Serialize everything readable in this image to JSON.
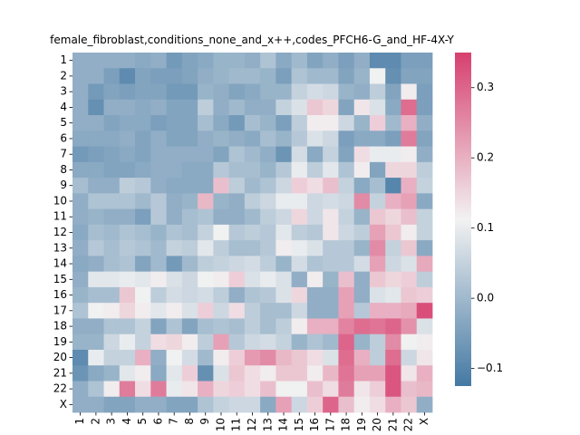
{
  "chart_data": {
    "type": "heatmap",
    "title": "female_fibroblast,conditions_none_and_x++,codes_PFCH6-G_and_HF-4X-Y",
    "xlabel": "",
    "ylabel": "",
    "x_labels": [
      "1",
      "2",
      "3",
      "4",
      "5",
      "6",
      "7",
      "8",
      "9",
      "10",
      "11",
      "12",
      "13",
      "14",
      "15",
      "16",
      "17",
      "18",
      "19",
      "20",
      "21",
      "22",
      "X"
    ],
    "y_labels": [
      "1",
      "2",
      "3",
      "4",
      "5",
      "6",
      "7",
      "8",
      "9",
      "10",
      "11",
      "12",
      "13",
      "14",
      "15",
      "16",
      "17",
      "18",
      "19",
      "20",
      "21",
      "22",
      "X"
    ],
    "colorbar": {
      "ticks": [
        -0.1,
        0.0,
        0.1,
        0.2,
        0.3
      ],
      "tick_labels": [
        "−0.1",
        "0.0",
        "0.1",
        "0.2",
        "0.3"
      ],
      "vmin": -0.125,
      "vmax": 0.35
    },
    "colormap": {
      "low": "#4479a3",
      "mid": "#f2f2f2",
      "high": "#d7406f"
    },
    "values": [
      [
        -0.02,
        -0.02,
        -0.02,
        -0.02,
        -0.03,
        -0.02,
        -0.06,
        -0.04,
        -0.03,
        -0.01,
        -0.01,
        -0.02,
        0.02,
        -0.03,
        0.0,
        -0.04,
        -0.02,
        -0.05,
        -0.02,
        -0.09,
        -0.09,
        -0.05,
        -0.05
      ],
      [
        -0.02,
        -0.02,
        -0.05,
        -0.09,
        -0.04,
        -0.05,
        -0.05,
        -0.04,
        -0.02,
        -0.01,
        0.0,
        0.0,
        -0.01,
        -0.05,
        0.02,
        0.0,
        0.0,
        -0.04,
        -0.01,
        0.11,
        -0.08,
        -0.04,
        -0.04
      ],
      [
        -0.02,
        -0.06,
        -0.04,
        -0.05,
        -0.04,
        -0.04,
        -0.06,
        -0.06,
        -0.01,
        -0.02,
        -0.04,
        -0.03,
        -0.01,
        -0.01,
        0.05,
        0.07,
        0.06,
        -0.01,
        -0.02,
        0.04,
        -0.04,
        0.12,
        -0.05
      ],
      [
        -0.02,
        -0.08,
        -0.02,
        -0.02,
        -0.03,
        -0.02,
        -0.04,
        -0.04,
        0.04,
        -0.02,
        0.0,
        -0.02,
        -0.02,
        0.05,
        0.08,
        0.17,
        0.15,
        -0.04,
        0.13,
        0.08,
        -0.03,
        0.29,
        -0.05
      ],
      [
        -0.02,
        -0.02,
        -0.04,
        -0.03,
        -0.03,
        -0.05,
        -0.04,
        -0.04,
        0.01,
        -0.03,
        -0.06,
        0.01,
        -0.01,
        -0.05,
        0.04,
        0.12,
        0.12,
        0.06,
        -0.01,
        0.16,
        0.0,
        0.2,
        -0.02
      ],
      [
        -0.03,
        -0.03,
        -0.03,
        -0.02,
        -0.04,
        -0.02,
        -0.04,
        -0.04,
        -0.02,
        -0.01,
        -0.02,
        -0.03,
        0.01,
        -0.01,
        0.03,
        0.08,
        0.06,
        -0.05,
        -0.03,
        -0.03,
        -0.05,
        0.27,
        -0.04
      ],
      [
        -0.06,
        -0.05,
        -0.04,
        -0.03,
        -0.04,
        -0.02,
        -0.02,
        -0.02,
        -0.02,
        -0.04,
        0.02,
        0.0,
        -0.02,
        -0.07,
        0.07,
        -0.03,
        0.05,
        -0.04,
        0.14,
        0.1,
        0.1,
        0.12,
        -0.02
      ],
      [
        -0.03,
        -0.03,
        -0.04,
        -0.04,
        -0.03,
        -0.02,
        -0.02,
        -0.03,
        -0.03,
        0.03,
        0.01,
        0.01,
        -0.01,
        0.03,
        0.1,
        0.04,
        0.09,
        0.02,
        0.12,
        -0.04,
        0.15,
        0.15,
        0.04
      ],
      [
        0.01,
        -0.02,
        -0.02,
        0.04,
        0.03,
        -0.02,
        -0.03,
        -0.03,
        -0.03,
        0.18,
        0.04,
        0.0,
        0.02,
        0.06,
        0.16,
        0.14,
        0.18,
        0.05,
        -0.03,
        0.01,
        -0.1,
        0.2,
        0.05
      ],
      [
        -0.02,
        0.02,
        0.02,
        0.02,
        0.0,
        0.03,
        -0.02,
        -0.01,
        0.19,
        -0.01,
        -0.02,
        0.04,
        0.06,
        0.1,
        0.1,
        0.06,
        0.07,
        0.06,
        0.25,
        0.05,
        0.2,
        0.22,
        -0.03
      ],
      [
        -0.02,
        -0.01,
        -0.02,
        -0.02,
        -0.05,
        0.03,
        -0.02,
        0.01,
        0.02,
        -0.02,
        -0.02,
        0.0,
        0.04,
        0.06,
        0.15,
        0.06,
        0.13,
        0.05,
        -0.01,
        0.17,
        0.15,
        0.18,
        0.05
      ],
      [
        -0.03,
        0.01,
        0.0,
        0.02,
        0.01,
        -0.01,
        0.02,
        0.01,
        0.05,
        0.11,
        0.03,
        0.04,
        0.03,
        0.09,
        0.04,
        0.03,
        0.13,
        0.06,
        0.04,
        0.22,
        0.17,
        0.12,
        0.05
      ],
      [
        -0.02,
        0.03,
        0.01,
        0.03,
        0.02,
        0.0,
        0.05,
        0.04,
        0.09,
        0.04,
        0.01,
        0.01,
        0.03,
        0.12,
        0.1,
        0.08,
        0.03,
        0.03,
        -0.01,
        0.25,
        0.05,
        0.17,
        -0.03
      ],
      [
        -0.03,
        -0.02,
        0.01,
        0.02,
        -0.04,
        0.0,
        -0.06,
        0.0,
        0.04,
        0.05,
        0.06,
        0.07,
        0.04,
        -0.01,
        0.07,
        0.02,
        0.03,
        0.03,
        0.07,
        0.22,
        0.06,
        0.08,
        0.21
      ],
      [
        -0.02,
        0.09,
        0.09,
        0.1,
        0.09,
        0.12,
        0.08,
        0.06,
        0.11,
        0.12,
        0.16,
        0.08,
        0.1,
        0.08,
        -0.02,
        0.12,
        -0.01,
        0.18,
        -0.02,
        0.17,
        0.15,
        0.16,
        0.04
      ],
      [
        -0.01,
        0.01,
        0.01,
        0.17,
        0.11,
        0.04,
        0.07,
        0.06,
        0.07,
        0.04,
        -0.02,
        0.02,
        0.03,
        0.08,
        0.15,
        -0.02,
        -0.02,
        0.22,
        -0.02,
        0.08,
        0.09,
        0.17,
        0.16
      ],
      [
        0.02,
        0.11,
        0.12,
        0.15,
        0.12,
        0.09,
        0.12,
        0.08,
        0.16,
        0.06,
        0.14,
        0.04,
        0.01,
        0.01,
        0.06,
        -0.02,
        -0.02,
        0.22,
        0.03,
        0.2,
        0.2,
        0.21,
        0.33
      ],
      [
        -0.02,
        -0.02,
        0.02,
        0.02,
        0.05,
        -0.04,
        0.02,
        -0.04,
        0.01,
        0.02,
        0.01,
        0.04,
        0.01,
        0.04,
        0.12,
        0.2,
        0.2,
        0.26,
        0.29,
        0.28,
        0.3,
        0.24,
        0.08
      ],
      [
        -0.01,
        -0.01,
        0.06,
        0.1,
        0.05,
        0.14,
        0.15,
        0.12,
        0.04,
        0.22,
        0.03,
        0.06,
        0.07,
        0.05,
        -0.01,
        0.02,
        0.0,
        0.3,
        -0.01,
        0.04,
        0.25,
        0.11,
        0.12
      ],
      [
        -0.09,
        0.1,
        0.05,
        0.05,
        0.2,
        -0.02,
        0.11,
        0.07,
        0.0,
        0.12,
        0.16,
        0.23,
        0.25,
        0.19,
        0.17,
        0.14,
        0.08,
        0.29,
        0.2,
        0.04,
        0.29,
        0.06,
        0.13
      ],
      [
        -0.07,
        -0.03,
        -0.01,
        0.09,
        0.12,
        -0.03,
        0.09,
        0.16,
        -0.08,
        0.08,
        0.17,
        0.14,
        0.12,
        0.17,
        0.17,
        0.12,
        0.19,
        0.28,
        0.22,
        0.22,
        0.32,
        0.13,
        0.2
      ],
      [
        -0.02,
        0.02,
        0.12,
        0.27,
        0.14,
        0.27,
        0.1,
        0.13,
        0.2,
        0.15,
        0.16,
        0.14,
        0.18,
        0.11,
        0.11,
        0.18,
        0.14,
        0.27,
        0.13,
        0.16,
        0.32,
        0.18,
        0.19
      ],
      [
        -0.02,
        -0.02,
        -0.04,
        -0.04,
        -0.02,
        -0.02,
        -0.04,
        -0.04,
        0.02,
        0.05,
        0.06,
        0.06,
        -0.03,
        0.22,
        0.06,
        0.16,
        0.3,
        0.18,
        0.12,
        0.14,
        0.2,
        0.17,
        -0.02
      ]
    ]
  }
}
